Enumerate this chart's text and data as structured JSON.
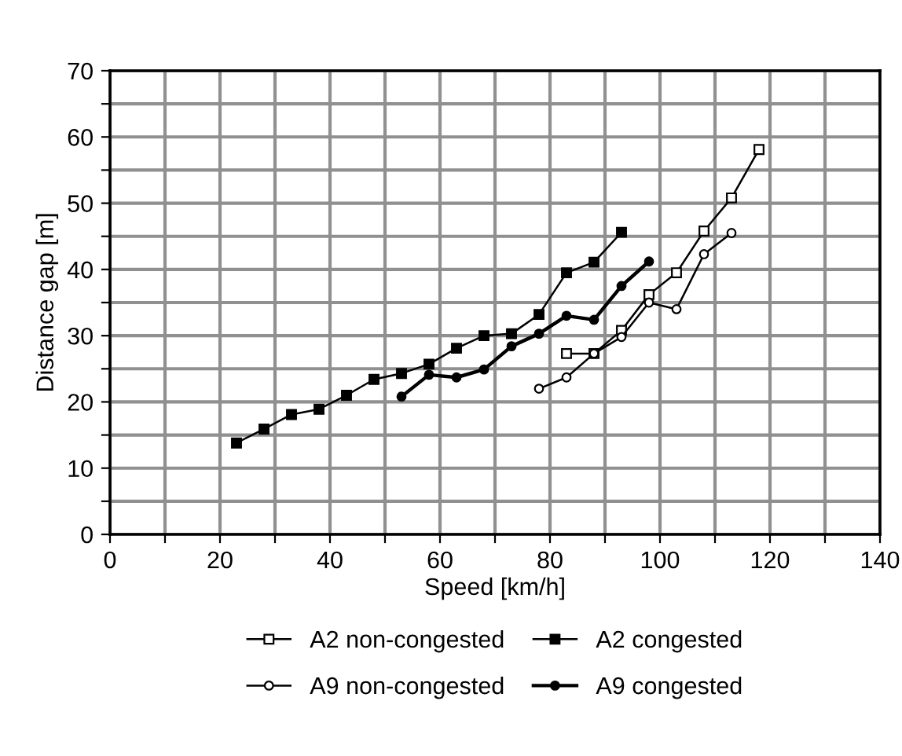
{
  "chart_data": {
    "type": "line",
    "xlabel": "Speed [km/h]",
    "ylabel": "Distance gap [m]",
    "xlim": [
      0,
      140
    ],
    "ylim": [
      0,
      70
    ],
    "xticks": [
      0,
      {
        "value": 10,
        "label": null
      },
      20,
      {
        "value": 30,
        "label": null
      },
      40,
      {
        "value": 50,
        "label": null
      },
      60,
      {
        "value": 70,
        "label": null
      },
      80,
      {
        "value": 90,
        "label": null
      },
      100,
      {
        "value": 110,
        "label": null
      },
      120,
      {
        "value": 130,
        "label": null
      },
      140
    ],
    "yticks": [
      0,
      {
        "value": 5,
        "label": null
      },
      10,
      {
        "value": 15,
        "label": null
      },
      20,
      {
        "value": 25,
        "label": null
      },
      30,
      {
        "value": 35,
        "label": null
      },
      40,
      {
        "value": 45,
        "label": null
      },
      50,
      {
        "value": 55,
        "label": null
      },
      60,
      {
        "value": 65,
        "label": null
      },
      70
    ],
    "grid": true,
    "legend": "bottom",
    "line_style": "solid",
    "series": [
      {
        "name": "A2 non-congested",
        "color": "#000000",
        "marker": "square",
        "x": [
          83,
          88,
          93,
          98,
          103,
          108,
          113,
          118
        ],
        "values": [
          27.3,
          27.3,
          30.8,
          36.2,
          39.5,
          45.8,
          50.8,
          58.1
        ]
      },
      {
        "name": "A2 congested",
        "color": "#000000",
        "marker": "square",
        "x": [
          23,
          28,
          33,
          38,
          43,
          48,
          53,
          58,
          63,
          68,
          73,
          78,
          83,
          88,
          93
        ],
        "values": [
          13.8,
          15.9,
          18.1,
          18.9,
          21.0,
          23.4,
          24.3,
          25.7,
          28.1,
          30.0,
          30.3,
          33.2,
          39.5,
          41.1,
          45.6
        ]
      },
      {
        "name": "A9 non-congested",
        "color": "#000000",
        "marker": "circle",
        "x": [
          78,
          83,
          88,
          93,
          98,
          103,
          108,
          113
        ],
        "values": [
          22.0,
          23.7,
          27.3,
          29.8,
          35.0,
          34.0,
          42.3,
          45.5
        ]
      },
      {
        "name": "A9 congested",
        "color": "#000000",
        "marker": "circle",
        "x": [
          53,
          58,
          63,
          68,
          73,
          78,
          83,
          88,
          93,
          98
        ],
        "values": [
          20.8,
          24.1,
          23.7,
          24.9,
          28.4,
          30.3,
          33.0,
          32.4,
          37.5,
          41.2
        ]
      }
    ]
  }
}
